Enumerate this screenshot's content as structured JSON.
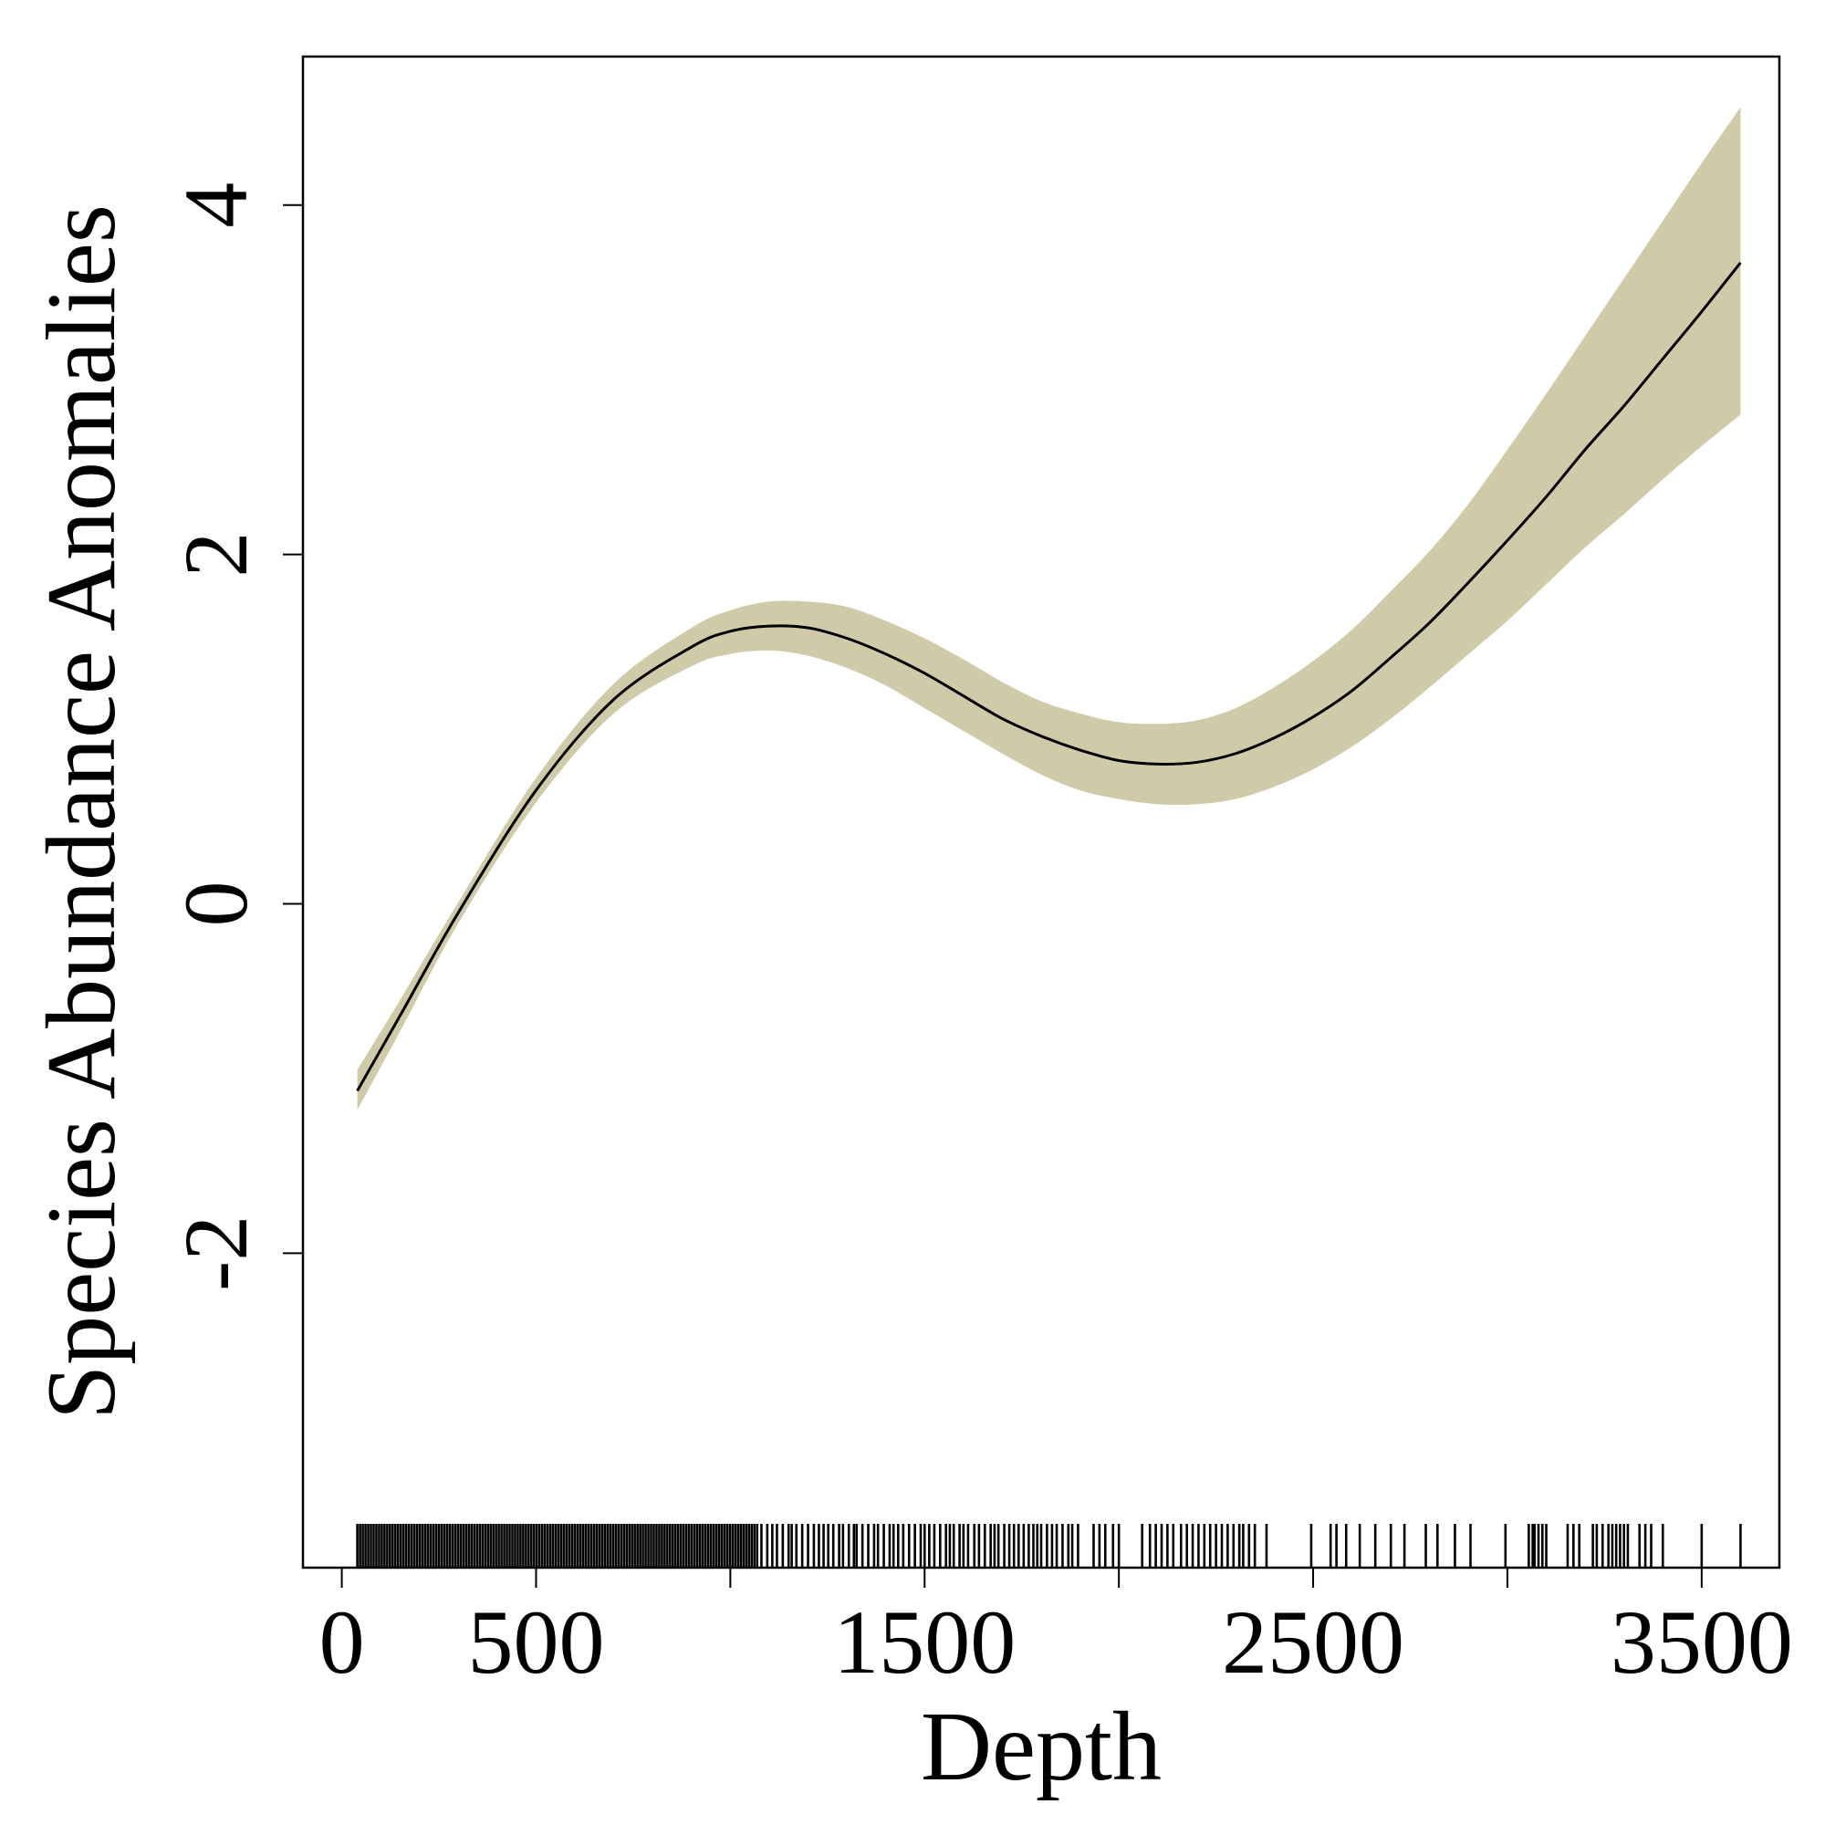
{
  "chart_data": {
    "type": "line",
    "title": "",
    "xlabel": "Depth",
    "ylabel": "Species Abundance Anomalies",
    "xlim": [
      -100,
      3700
    ],
    "ylim": [
      -3.8,
      4.85
    ],
    "x_ticks": [
      0,
      500,
      1000,
      1500,
      2000,
      2500,
      3000,
      3500
    ],
    "x_tick_labels": [
      "0",
      "500",
      "",
      "1500",
      "",
      "2500",
      "",
      "3500"
    ],
    "y_ticks": [
      -2,
      0,
      2,
      4
    ],
    "y_tick_labels": [
      "-2",
      "0",
      "2",
      "4"
    ],
    "grid": false,
    "legend": "none",
    "colors": {
      "fit_line": "#000000",
      "confidence_band": "#cfcaa8",
      "rug": "#000000",
      "frame": "#000000"
    },
    "series": [
      {
        "x": [
          40,
          150,
          300,
          500,
          700,
          900,
          1000,
          1100,
          1200,
          1300,
          1400,
          1500,
          1600,
          1700,
          1800,
          1900,
          2000,
          2100,
          2200,
          2300,
          2400,
          2500,
          2600,
          2700,
          2800,
          2900,
          3000,
          3100,
          3200,
          3300,
          3400,
          3500,
          3600
        ],
        "y": [
          -1.07,
          -0.64,
          -0.05,
          0.65,
          1.17,
          1.47,
          1.56,
          1.59,
          1.58,
          1.52,
          1.43,
          1.32,
          1.19,
          1.06,
          0.96,
          0.88,
          0.82,
          0.8,
          0.81,
          0.86,
          0.95,
          1.07,
          1.22,
          1.41,
          1.61,
          1.84,
          2.08,
          2.33,
          2.6,
          2.85,
          3.12,
          3.39,
          3.67
        ],
        "lower": [
          -1.18,
          -0.73,
          -0.11,
          0.58,
          1.09,
          1.36,
          1.43,
          1.45,
          1.42,
          1.35,
          1.25,
          1.12,
          0.99,
          0.86,
          0.74,
          0.65,
          0.6,
          0.57,
          0.57,
          0.6,
          0.67,
          0.77,
          0.9,
          1.06,
          1.24,
          1.43,
          1.62,
          1.83,
          2.04,
          2.23,
          2.43,
          2.62,
          2.8
        ],
        "upper": [
          -0.95,
          -0.55,
          0.01,
          0.72,
          1.26,
          1.58,
          1.68,
          1.73,
          1.73,
          1.7,
          1.62,
          1.52,
          1.4,
          1.27,
          1.16,
          1.09,
          1.04,
          1.03,
          1.05,
          1.12,
          1.24,
          1.39,
          1.57,
          1.79,
          2.02,
          2.29,
          2.6,
          2.92,
          3.25,
          3.58,
          3.91,
          4.24,
          4.56
        ]
      }
    ],
    "rug_x": [
      40,
      47,
      54,
      61,
      68,
      75,
      82,
      89,
      96,
      103,
      110,
      117,
      124,
      131,
      138,
      145,
      152,
      159,
      166,
      173,
      180,
      187,
      194,
      201,
      208,
      215,
      222,
      229,
      236,
      243,
      250,
      257,
      264,
      271,
      278,
      285,
      292,
      299,
      306,
      313,
      320,
      327,
      334,
      341,
      348,
      355,
      362,
      369,
      376,
      383,
      390,
      397,
      404,
      411,
      418,
      425,
      432,
      439,
      446,
      453,
      460,
      467,
      474,
      481,
      488,
      495,
      502,
      509,
      516,
      523,
      530,
      537,
      544,
      551,
      558,
      565,
      572,
      579,
      586,
      593,
      600,
      607,
      614,
      621,
      628,
      635,
      642,
      649,
      656,
      663,
      670,
      677,
      684,
      691,
      698,
      705,
      712,
      719,
      726,
      733,
      740,
      747,
      754,
      761,
      768,
      775,
      782,
      789,
      796,
      803,
      810,
      817,
      824,
      831,
      838,
      845,
      852,
      859,
      866,
      873,
      880,
      887,
      894,
      901,
      908,
      915,
      922,
      929,
      936,
      943,
      950,
      957,
      964,
      971,
      978,
      985,
      992,
      999,
      1006,
      1013,
      1020,
      1027,
      1034,
      1041,
      1048,
      1055,
      1062,
      1069,
      1080,
      1095,
      1108,
      1120,
      1135,
      1150,
      1158,
      1170,
      1185,
      1200,
      1215,
      1228,
      1240,
      1252,
      1265,
      1280,
      1290,
      1305,
      1318,
      1325,
      1340,
      1355,
      1370,
      1380,
      1395,
      1410,
      1420,
      1432,
      1445,
      1460,
      1475,
      1490,
      1500,
      1512,
      1525,
      1540,
      1555,
      1565,
      1575,
      1590,
      1600,
      1612,
      1628,
      1640,
      1655,
      1670,
      1680,
      1690,
      1705,
      1718,
      1730,
      1742,
      1755,
      1768,
      1780,
      1790,
      1800,
      1815,
      1828,
      1840,
      1855,
      1870,
      1880,
      1895,
      1935,
      1950,
      1965,
      1985,
      2000,
      2060,
      2080,
      2095,
      2110,
      2125,
      2140,
      2160,
      2175,
      2190,
      2205,
      2220,
      2235,
      2250,
      2265,
      2280,
      2295,
      2310,
      2320,
      2335,
      2350,
      2380,
      2495,
      2545,
      2560,
      2585,
      2620,
      2660,
      2700,
      2735,
      2790,
      2820,
      2865,
      2905,
      2995,
      3055,
      3065,
      3070,
      3080,
      3090,
      3100,
      3155,
      3170,
      3185,
      3220,
      3230,
      3245,
      3260,
      3270,
      3280,
      3290,
      3300,
      3310,
      3340,
      3355,
      3370,
      3400,
      3500,
      3600
    ]
  }
}
